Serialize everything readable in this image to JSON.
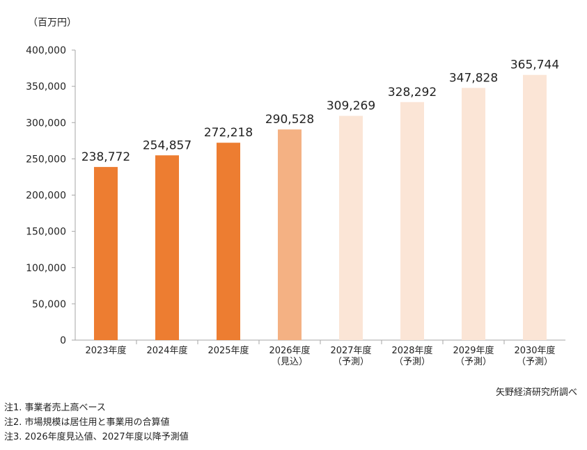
{
  "unit_label": "（百万円）",
  "source": "矢野経済研究所調べ",
  "notes": [
    "注1. 事業者売上高ベース",
    "注2. 市場規模は居住用と事業用の合算値",
    "注3. 2026年度見込値、2027年度以降予測値"
  ],
  "chart_data": {
    "type": "bar",
    "categories": [
      [
        "2023年度"
      ],
      [
        "2024年度"
      ],
      [
        "2025年度"
      ],
      [
        "2026年度",
        "（見込）"
      ],
      [
        "2027年度",
        "（予測）"
      ],
      [
        "2028年度",
        "（予測）"
      ],
      [
        "2029年度",
        "（予測）"
      ],
      [
        "2030年度",
        "（予測）"
      ]
    ],
    "values": [
      238772,
      254857,
      272218,
      290528,
      309269,
      328292,
      347828,
      365744
    ],
    "value_labels": [
      "238,772",
      "254,857",
      "272,218",
      "290,528",
      "309,269",
      "328,292",
      "347,828",
      "365,744"
    ],
    "ylim": [
      0,
      400000
    ],
    "yticks": [
      0,
      50000,
      100000,
      150000,
      200000,
      250000,
      300000,
      350000,
      400000
    ],
    "ytick_labels": [
      "0",
      "50,000",
      "100,000",
      "150,000",
      "200,000",
      "250,000",
      "300,000",
      "350,000",
      "400,000"
    ],
    "bar_colors": [
      "#ED7D31",
      "#ED7D31",
      "#ED7D31",
      "#F4B183",
      "#FBE5D6",
      "#FBE5D6",
      "#FBE5D6",
      "#FBE5D6"
    ],
    "axis_color": "#A6A6A6",
    "grid": false,
    "legend": false
  }
}
